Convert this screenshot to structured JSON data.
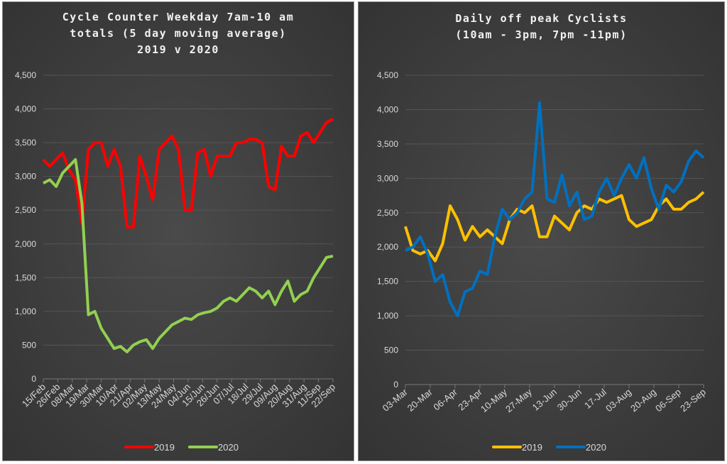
{
  "chart_data": [
    {
      "type": "line",
      "title_lines": [
        "Cycle Counter Weekday 7am-10 am",
        "totals (5 day moving average)",
        "2019 v 2020"
      ],
      "xlabel": "",
      "ylabel": "",
      "ylim": [
        0,
        4500
      ],
      "yticks": [
        "0",
        "500",
        "1,000",
        "1,500",
        "2,000",
        "2,500",
        "3,000",
        "3,500",
        "4,000",
        "4,500"
      ],
      "xticks": [
        "15/Feb",
        "26/Feb",
        "08/Mar",
        "19/Mar",
        "30/Mar",
        "10/Apr",
        "21/Apr",
        "02/May",
        "13/May",
        "24/May",
        "04/Jun",
        "15/Jun",
        "26/Jun",
        "07/Jul",
        "18/Jul",
        "29/Jul",
        "09/Aug",
        "20/Aug",
        "31/Aug",
        "11/Sep",
        "22/Sep"
      ],
      "x_note": "values sampled every 5 days from 15/Feb",
      "grid": true,
      "legend": "bottom",
      "series": [
        {
          "name": "2019",
          "color": "#ff0000",
          "values": [
            3250,
            3150,
            3250,
            3350,
            3100,
            2950,
            2300,
            3400,
            3500,
            3500,
            3150,
            3400,
            3150,
            2250,
            2250,
            3300,
            3000,
            2650,
            3400,
            3500,
            3600,
            3400,
            2500,
            2500,
            3350,
            3400,
            3000,
            3300,
            3300,
            3300,
            3500,
            3500,
            3550,
            3550,
            3500,
            2850,
            2800,
            3450,
            3300,
            3300,
            3600,
            3650,
            3500,
            3650,
            3800,
            3850
          ]
        },
        {
          "name": "2020",
          "color": "#92d050",
          "values": [
            2900,
            2950,
            2850,
            3050,
            3150,
            3250,
            2600,
            950,
            1000,
            750,
            600,
            450,
            480,
            400,
            500,
            550,
            580,
            450,
            600,
            700,
            800,
            850,
            900,
            880,
            950,
            980,
            1000,
            1050,
            1150,
            1200,
            1150,
            1250,
            1350,
            1300,
            1200,
            1300,
            1100,
            1300,
            1450,
            1150,
            1250,
            1300,
            1500,
            1650,
            1800,
            1820
          ]
        }
      ]
    },
    {
      "type": "line",
      "title_lines": [
        "Daily off peak Cyclists",
        "(10am - 3pm, 7pm -11pm)"
      ],
      "xlabel": "",
      "ylabel": "",
      "ylim": [
        0,
        4500
      ],
      "yticks": [
        "0",
        "500",
        "1,000",
        "1,500",
        "2,000",
        "2,500",
        "3,000",
        "3,500",
        "4,000",
        "4,500"
      ],
      "xticks": [
        "03-Mar",
        "20-Mar",
        "06-Apr",
        "23-Apr",
        "10-May",
        "27-May",
        "13-Jun",
        "30-Jun",
        "17-Jul",
        "03-Aug",
        "20-Aug",
        "06-Sep",
        "23-Sep"
      ],
      "x_note": "values sampled every 5 days from 03-Mar",
      "grid": true,
      "legend": "bottom",
      "series": [
        {
          "name": "2019",
          "color": "#ffc000",
          "values": [
            2300,
            1950,
            1900,
            1950,
            1800,
            2050,
            2600,
            2400,
            2100,
            2300,
            2150,
            2250,
            2150,
            2050,
            2400,
            2550,
            2500,
            2600,
            2150,
            2150,
            2450,
            2350,
            2250,
            2500,
            2600,
            2550,
            2700,
            2650,
            2700,
            2750,
            2400,
            2300,
            2350,
            2400,
            2600,
            2700,
            2550,
            2550,
            2650,
            2700,
            2800
          ]
        },
        {
          "name": "2020",
          "color": "#0070c0",
          "values": [
            1950,
            2000,
            2150,
            1900,
            1500,
            1600,
            1200,
            1000,
            1350,
            1400,
            1650,
            1600,
            2150,
            2550,
            2400,
            2500,
            2700,
            2800,
            4100,
            2700,
            2650,
            3050,
            2600,
            2800,
            2400,
            2450,
            2800,
            3000,
            2750,
            3000,
            3200,
            3000,
            3300,
            2850,
            2550,
            2900,
            2800,
            2950,
            3250,
            3400,
            3300
          ]
        }
      ]
    }
  ]
}
